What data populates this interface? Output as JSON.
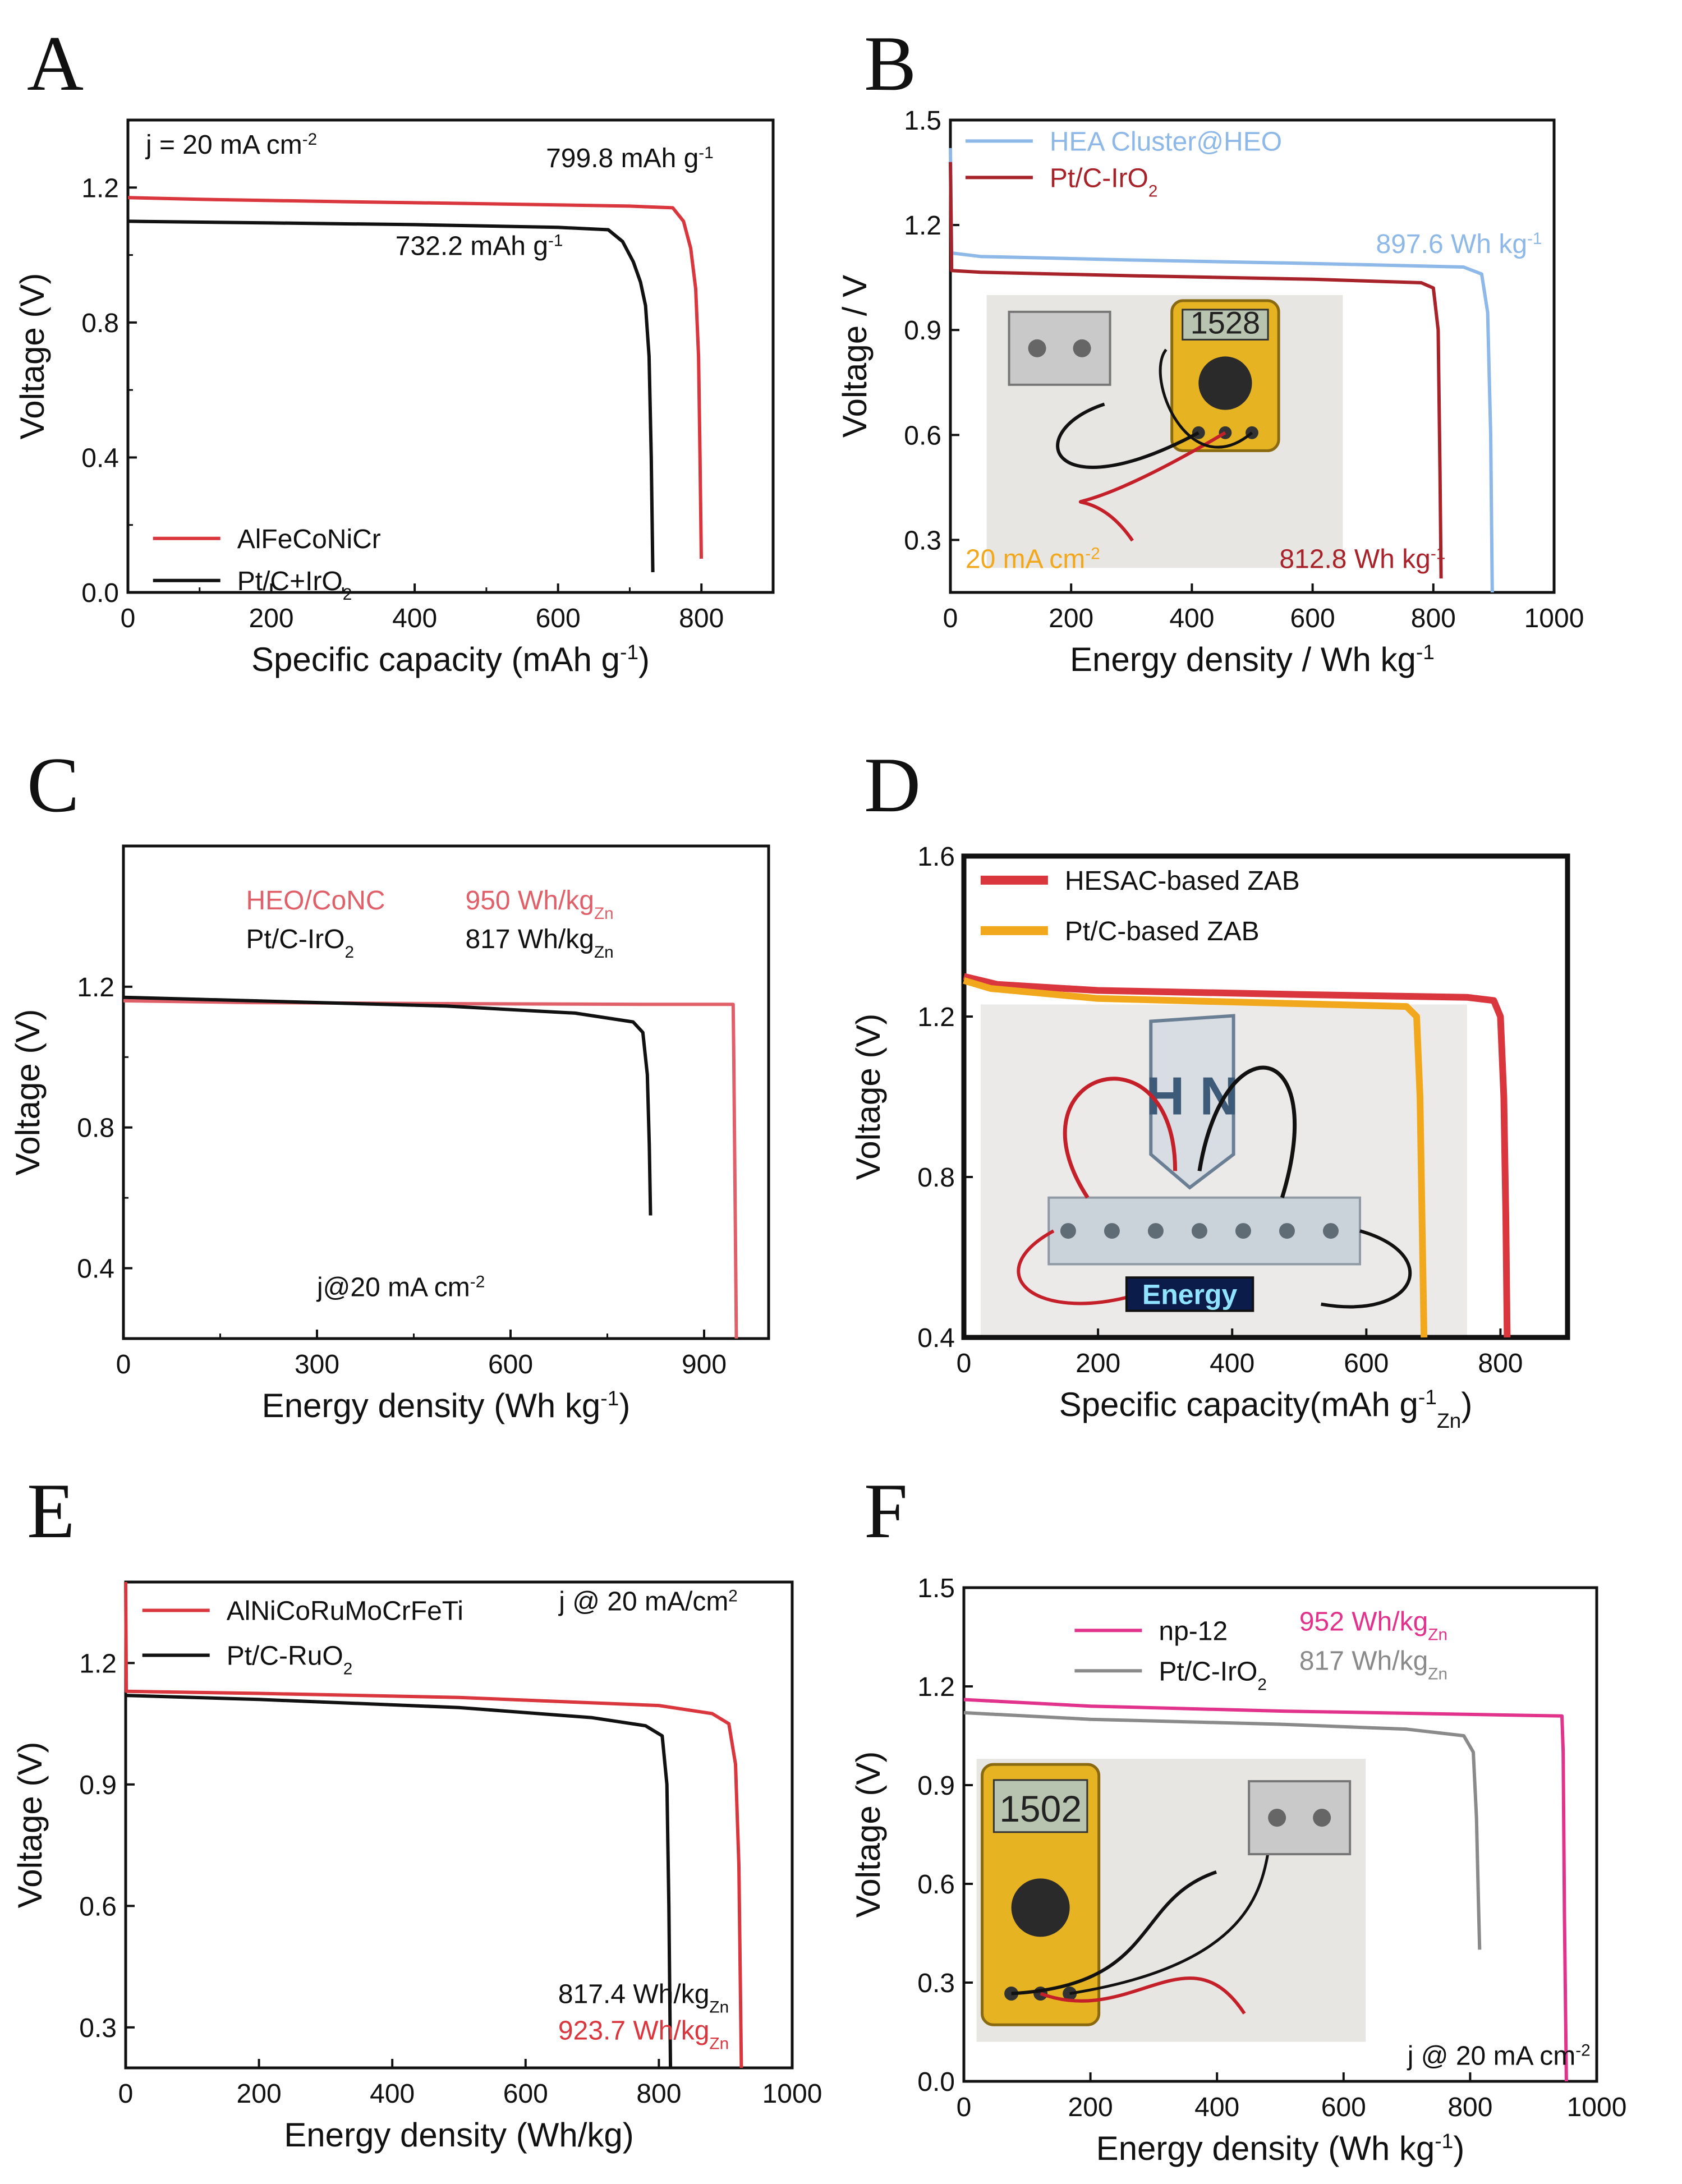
{
  "colors": {
    "red": "#d9363e",
    "black": "#111111",
    "lightblue": "#8db8e8",
    "darkred": "#a8222a",
    "salmon": "#e0606a",
    "orange": "#f2a81d",
    "magenta": "#e2338c",
    "gray": "#8a8a8a",
    "photo": "#cfcfcf"
  },
  "chart_data": [
    {
      "panel": "A",
      "type": "line",
      "xlabel": "Specific capacity (mAh g",
      "xlabel_sup": "-1",
      "xlabel_tail": ")",
      "ylabel": "Voltage (V)",
      "xlim": [
        0,
        900
      ],
      "ylim": [
        0,
        1.4
      ],
      "xticks": [
        0,
        200,
        400,
        600,
        800
      ],
      "yticks": [
        0.0,
        0.4,
        0.8,
        1.2
      ],
      "xtick_labels": [
        "0",
        "200",
        "400",
        "600",
        "800"
      ],
      "ytick_labels": [
        "0.0",
        "0.4",
        "0.8",
        "1.2"
      ],
      "minor_x": true,
      "minor_y": true,
      "series": [
        {
          "name": "AlFeCoNiCr",
          "color": "red",
          "points": [
            [
              0,
              1.17
            ],
            [
              100,
              1.165
            ],
            [
              300,
              1.158
            ],
            [
              500,
              1.152
            ],
            [
              700,
              1.145
            ],
            [
              760,
              1.14
            ],
            [
              775,
              1.1
            ],
            [
              785,
              1.02
            ],
            [
              792,
              0.9
            ],
            [
              796,
              0.7
            ],
            [
              798,
              0.4
            ],
            [
              799.8,
              0.1
            ]
          ]
        },
        {
          "name": "Pt/C+IrO2",
          "color": "black",
          "points": [
            [
              0,
              1.1
            ],
            [
              200,
              1.095
            ],
            [
              400,
              1.09
            ],
            [
              600,
              1.082
            ],
            [
              670,
              1.075
            ],
            [
              690,
              1.04
            ],
            [
              705,
              0.98
            ],
            [
              715,
              0.92
            ],
            [
              722,
              0.85
            ],
            [
              727,
              0.7
            ],
            [
              730,
              0.4
            ],
            [
              732.2,
              0.06
            ]
          ]
        }
      ],
      "texts": [
        {
          "id": "j",
          "text": "j = 20 mA cm",
          "sup": "-2",
          "color": "black"
        },
        {
          "id": "cap1",
          "text": "799.8 mAh g",
          "sup": "-1",
          "color": "black"
        },
        {
          "id": "cap2",
          "text": "732.2 mAh g",
          "sup": "-1",
          "color": "black"
        }
      ],
      "legend": [
        {
          "label": "AlFeCoNiCr",
          "color": "red"
        },
        {
          "label": "Pt/C+IrO",
          "sub": "2",
          "color": "black"
        }
      ]
    },
    {
      "panel": "B",
      "type": "line",
      "xlabel": "Energy density / Wh kg",
      "xlabel_sup": "-1",
      "xlabel_tail": "",
      "ylabel": "Voltage / V",
      "xlim": [
        0,
        1000
      ],
      "ylim": [
        0.15,
        1.5
      ],
      "xticks": [
        0,
        200,
        400,
        600,
        800,
        1000
      ],
      "yticks": [
        0.3,
        0.6,
        0.9,
        1.2,
        1.5
      ],
      "xtick_labels": [
        "0",
        "200",
        "400",
        "600",
        "800",
        "1000"
      ],
      "ytick_labels": [
        "0.3",
        "0.6",
        "0.9",
        "1.2",
        "1.5"
      ],
      "minor_x": false,
      "minor_y": false,
      "series": [
        {
          "name": "HEA Cluster@HEO",
          "color": "lightblue",
          "points": [
            [
              0,
              1.42
            ],
            [
              2,
              1.12
            ],
            [
              50,
              1.11
            ],
            [
              300,
              1.1
            ],
            [
              600,
              1.09
            ],
            [
              850,
              1.08
            ],
            [
              880,
              1.06
            ],
            [
              890,
              0.95
            ],
            [
              895,
              0.6
            ],
            [
              897.6,
              0.15
            ]
          ]
        },
        {
          "name": "Pt/C-IrO2",
          "color": "darkred",
          "points": [
            [
              0,
              1.38
            ],
            [
              2,
              1.07
            ],
            [
              50,
              1.065
            ],
            [
              300,
              1.055
            ],
            [
              600,
              1.045
            ],
            [
              780,
              1.035
            ],
            [
              800,
              1.02
            ],
            [
              808,
              0.9
            ],
            [
              811,
              0.5
            ],
            [
              812.8,
              0.19
            ]
          ]
        }
      ],
      "texts": [
        {
          "id": "e1",
          "text": "897.6 Wh kg",
          "sup": "-1",
          "color": "lightblue"
        },
        {
          "id": "e2",
          "text": "812.8 Wh kg",
          "sup": "-1",
          "color": "darkred"
        },
        {
          "id": "j",
          "text": "20 mA cm",
          "sup": "-2",
          "color": "orange"
        }
      ],
      "legend": [
        {
          "label": "HEA Cluster@HEO",
          "color": "lightblue"
        },
        {
          "label": "Pt/C-IrO",
          "sub": "2",
          "color": "darkred"
        }
      ],
      "photo": true
    },
    {
      "panel": "C",
      "type": "line",
      "xlabel": "Energy density (Wh kg",
      "xlabel_sup": "-1",
      "xlabel_tail": ")",
      "ylabel": "Voltage (V)",
      "xlim": [
        0,
        1000
      ],
      "ylim": [
        0.2,
        1.6
      ],
      "xticks": [
        0,
        300,
        600,
        900
      ],
      "yticks": [
        0.4,
        0.8,
        1.2
      ],
      "xtick_labels": [
        "0",
        "300",
        "600",
        "900"
      ],
      "ytick_labels": [
        "0.4",
        "0.8",
        "1.2"
      ],
      "minor_x": true,
      "minor_y": true,
      "series": [
        {
          "name": "HEO/CoNC",
          "color": "salmon",
          "points": [
            [
              0,
              1.16
            ],
            [
              200,
              1.155
            ],
            [
              500,
              1.152
            ],
            [
              800,
              1.15
            ],
            [
              945,
              1.15
            ],
            [
              946,
              1.0
            ],
            [
              948,
              0.6
            ],
            [
              950,
              0.2
            ]
          ]
        },
        {
          "name": "Pt/C-IrO2",
          "color": "black",
          "points": [
            [
              0,
              1.17
            ],
            [
              200,
              1.16
            ],
            [
              500,
              1.145
            ],
            [
              700,
              1.125
            ],
            [
              790,
              1.1
            ],
            [
              805,
              1.07
            ],
            [
              812,
              0.95
            ],
            [
              815,
              0.75
            ],
            [
              817,
              0.55
            ]
          ]
        }
      ],
      "texts": [
        {
          "id": "l1",
          "text": "HEO/CoNC",
          "color": "salmon"
        },
        {
          "id": "v1",
          "text": "950 Wh/kg",
          "sub": "Zn",
          "color": "salmon"
        },
        {
          "id": "l2",
          "text": "Pt/C-IrO",
          "sub": "2",
          "color": "black"
        },
        {
          "id": "v2",
          "text": "817 Wh/kg",
          "sub": "Zn",
          "color": "black"
        },
        {
          "id": "j",
          "text": "j@20 mA cm",
          "sup": "-2",
          "color": "black"
        }
      ],
      "legend": []
    },
    {
      "panel": "D",
      "type": "line",
      "xlabel": "Specific capacity(mAh g",
      "xlabel_sup": "-1",
      "xlabel_sub": "Zn",
      "xlabel_tail": ")",
      "ylabel": "Voltage (V)",
      "xlim": [
        0,
        900
      ],
      "ylim": [
        0.4,
        1.6
      ],
      "xticks": [
        0,
        200,
        400,
        600,
        800
      ],
      "yticks": [
        0.4,
        0.8,
        1.2,
        1.6
      ],
      "xtick_labels": [
        "0",
        "200",
        "400",
        "600",
        "800"
      ],
      "ytick_labels": [
        "0.4",
        "0.8",
        "1.2",
        "1.6"
      ],
      "minor_x": false,
      "minor_y": false,
      "thick": true,
      "series": [
        {
          "name": "HESAC-based ZAB",
          "color": "red",
          "points": [
            [
              0,
              1.3
            ],
            [
              50,
              1.28
            ],
            [
              200,
              1.265
            ],
            [
              500,
              1.255
            ],
            [
              750,
              1.248
            ],
            [
              790,
              1.24
            ],
            [
              800,
              1.2
            ],
            [
              805,
              1.0
            ],
            [
              808,
              0.7
            ],
            [
              810,
              0.4
            ]
          ]
        },
        {
          "name": "Pt/C-based ZAB",
          "color": "orange",
          "points": [
            [
              0,
              1.29
            ],
            [
              40,
              1.27
            ],
            [
              200,
              1.245
            ],
            [
              500,
              1.232
            ],
            [
              660,
              1.225
            ],
            [
              675,
              1.2
            ],
            [
              680,
              1.0
            ],
            [
              683,
              0.7
            ],
            [
              686,
              0.4
            ]
          ]
        }
      ],
      "texts": [],
      "legend": [
        {
          "label": "HESAC-based ZAB",
          "color": "red"
        },
        {
          "label": "Pt/C-based ZAB",
          "color": "orange"
        }
      ],
      "photo": true,
      "photo_label": "Energy",
      "photo_logo": "H N"
    },
    {
      "panel": "E",
      "type": "line",
      "xlabel": "Energy density (Wh/kg)",
      "xlabel_sup": "",
      "xlabel_tail": "",
      "ylabel": "Voltage (V)",
      "xlim": [
        0,
        1000
      ],
      "ylim": [
        0.2,
        1.4
      ],
      "xticks": [
        0,
        200,
        400,
        600,
        800,
        1000
      ],
      "yticks": [
        0.3,
        0.6,
        0.9,
        1.2
      ],
      "xtick_labels": [
        "0",
        "200",
        "400",
        "600",
        "800",
        "1000"
      ],
      "ytick_labels": [
        "0.3",
        "0.6",
        "0.9",
        "1.2"
      ],
      "minor_x": false,
      "minor_y": false,
      "series": [
        {
          "name": "AlNiCoRuMoCrFeTi",
          "color": "red",
          "points": [
            [
              0,
              1.4
            ],
            [
              1,
              1.13
            ],
            [
              200,
              1.125
            ],
            [
              500,
              1.115
            ],
            [
              800,
              1.095
            ],
            [
              880,
              1.075
            ],
            [
              905,
              1.05
            ],
            [
              915,
              0.95
            ],
            [
              920,
              0.7
            ],
            [
              923.7,
              0.2
            ]
          ]
        },
        {
          "name": "Pt/C-RuO2",
          "color": "black",
          "points": [
            [
              0,
              1.12
            ],
            [
              200,
              1.11
            ],
            [
              500,
              1.09
            ],
            [
              700,
              1.065
            ],
            [
              780,
              1.045
            ],
            [
              805,
              1.02
            ],
            [
              812,
              0.9
            ],
            [
              815,
              0.6
            ],
            [
              817.4,
              0.2
            ]
          ]
        }
      ],
      "texts": [
        {
          "id": "j",
          "text": "j @ 20 mA/cm",
          "sup": "2",
          "color": "black"
        },
        {
          "id": "v2",
          "text": "817.4 Wh/kg",
          "sub": "Zn",
          "color": "black"
        },
        {
          "id": "v1",
          "text": "923.7 Wh/kg",
          "sub": "Zn",
          "color": "red"
        }
      ],
      "legend": [
        {
          "label": "AlNiCoRuMoCrFeTi",
          "color": "red"
        },
        {
          "label": "Pt/C-RuO",
          "sub": "2",
          "color": "black"
        }
      ]
    },
    {
      "panel": "F",
      "type": "line",
      "xlabel": "Energy density (Wh kg",
      "xlabel_sup": "-1",
      "xlabel_tail": ")",
      "ylabel": "Voltage (V)",
      "xlim": [
        0,
        1000
      ],
      "ylim": [
        0,
        1.5
      ],
      "xticks": [
        0,
        200,
        400,
        600,
        800,
        1000
      ],
      "yticks": [
        0.0,
        0.3,
        0.6,
        0.9,
        1.2,
        1.5
      ],
      "xtick_labels": [
        "0",
        "200",
        "400",
        "600",
        "800",
        "1000"
      ],
      "ytick_labels": [
        "0.0",
        "0.3",
        "0.6",
        "0.9",
        "1.2",
        "1.5"
      ],
      "minor_x": false,
      "minor_y": false,
      "series": [
        {
          "name": "np-12",
          "color": "magenta",
          "points": [
            [
              0,
              1.16
            ],
            [
              200,
              1.14
            ],
            [
              500,
              1.125
            ],
            [
              800,
              1.115
            ],
            [
              945,
              1.11
            ],
            [
              947,
              1.0
            ],
            [
              949,
              0.5
            ],
            [
              952,
              0.0
            ]
          ]
        },
        {
          "name": "Pt/C-IrO2",
          "color": "gray",
          "points": [
            [
              0,
              1.12
            ],
            [
              200,
              1.1
            ],
            [
              500,
              1.085
            ],
            [
              700,
              1.07
            ],
            [
              790,
              1.05
            ],
            [
              805,
              1.0
            ],
            [
              810,
              0.8
            ],
            [
              813,
              0.55
            ],
            [
              815,
              0.4
            ]
          ]
        }
      ],
      "texts": [
        {
          "id": "v1",
          "text": "952 Wh/kg",
          "sub": "Zn",
          "color": "magenta"
        },
        {
          "id": "v2",
          "text": "817 Wh/kg",
          "sub": "Zn",
          "color": "gray"
        },
        {
          "id": "j",
          "text": "j @ 20 mA cm",
          "sup": "-2",
          "color": "black"
        }
      ],
      "legend": [
        {
          "label": "np-12",
          "color": "magenta"
        },
        {
          "label": "Pt/C-IrO",
          "sub": "2",
          "color": "gray"
        }
      ],
      "photo": true,
      "photo_reading": "1502"
    }
  ],
  "photo_readings": {
    "B": "1528",
    "F": "1502"
  }
}
